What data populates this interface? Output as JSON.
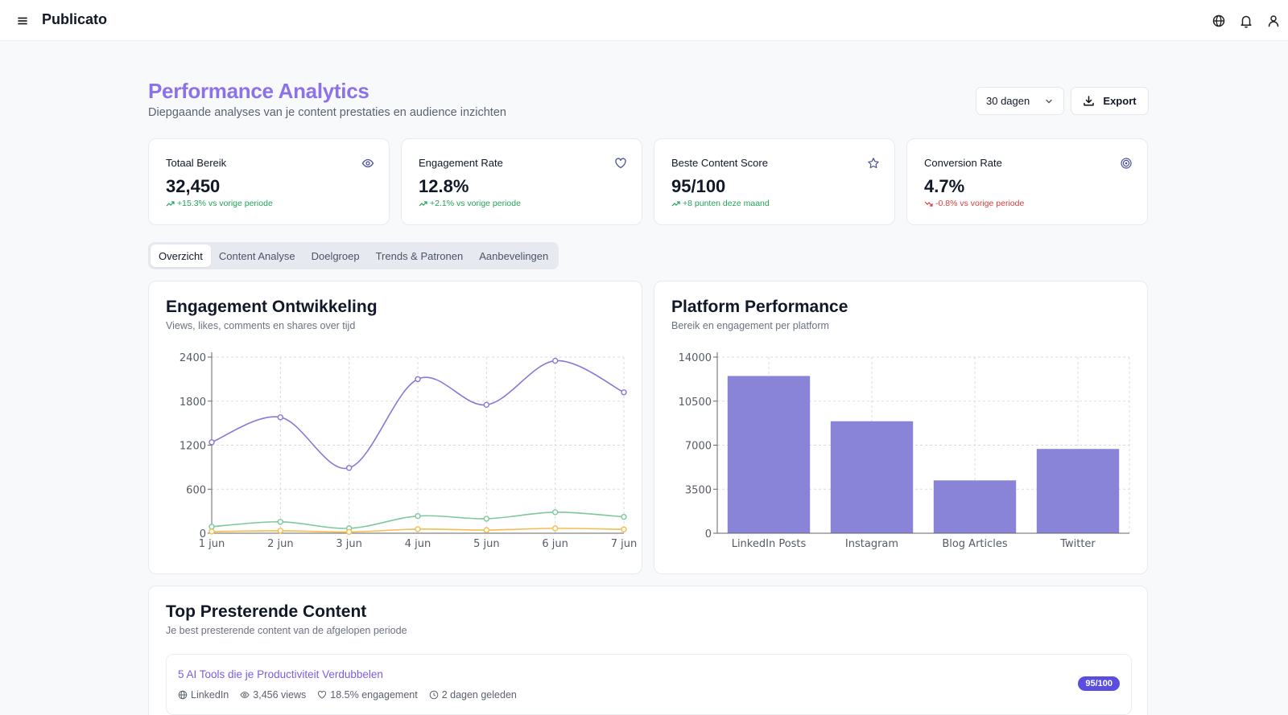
{
  "app": {
    "name": "Publicato"
  },
  "header": {
    "title": "Performance Analytics",
    "subtitle": "Diepgaande analyses van je content prestaties en audience inzichten"
  },
  "controls": {
    "range_value": "30 dagen",
    "export_label": "Export"
  },
  "kpis": [
    {
      "label": "Totaal Bereik",
      "value": "32,450",
      "delta": "+15.3% vs vorige periode",
      "trend": "up",
      "icon": "eye-icon"
    },
    {
      "label": "Engagement Rate",
      "value": "12.8%",
      "delta": "+2.1% vs vorige periode",
      "trend": "up",
      "icon": "heart-icon"
    },
    {
      "label": "Beste Content Score",
      "value": "95/100",
      "delta": "+8 punten deze maand",
      "trend": "up",
      "icon": "star-icon"
    },
    {
      "label": "Conversion Rate",
      "value": "4.7%",
      "delta": "-0.8% vs vorige periode",
      "trend": "down",
      "icon": "target-icon"
    }
  ],
  "tabs": [
    {
      "label": "Overzicht",
      "active": true
    },
    {
      "label": "Content Analyse",
      "active": false
    },
    {
      "label": "Doelgroep",
      "active": false
    },
    {
      "label": "Trends & Patronen",
      "active": false
    },
    {
      "label": "Aanbevelingen",
      "active": false
    }
  ],
  "colors": {
    "accent": "#8b72e8",
    "views": "#8878d6",
    "likes": "#7dc99a",
    "comments": "#f5bd4f",
    "bar": "#8a84d8",
    "up": "#23a35a",
    "down": "#e03a3a"
  },
  "engagement_card": {
    "title": "Engagement Ontwikkeling",
    "subtitle": "Views, likes, comments en shares over tijd"
  },
  "platform_card": {
    "title": "Platform Performance",
    "subtitle": "Bereik en engagement per platform"
  },
  "top_content": {
    "title": "Top Presterende Content",
    "subtitle": "Je best presterende content van de afgelopen periode",
    "items": [
      {
        "title": "5 AI Tools die je Productiviteit Verdubbelen",
        "platform": "LinkedIn",
        "views": "3,456 views",
        "engagement": "18.5% engagement",
        "time": "2 dagen geleden",
        "score": "95/100"
      }
    ]
  },
  "chart_data": [
    {
      "type": "line",
      "x": [
        "1 jun",
        "2 jun",
        "3 jun",
        "4 jun",
        "5 jun",
        "6 jun",
        "7 jun"
      ],
      "series": [
        {
          "values": [
            1240,
            1580,
            890,
            2100,
            1750,
            2350,
            1920
          ]
        },
        {
          "values": [
            89,
            156,
            67,
            234,
            198,
            287,
            223
          ]
        },
        {
          "values": [
            23,
            34,
            18,
            56,
            43,
            67,
            52
          ]
        }
      ],
      "ylim": [
        0,
        2400
      ],
      "yticks": [
        0,
        600,
        1200,
        1800,
        2400
      ],
      "grid": true
    },
    {
      "type": "bar",
      "categories": [
        "LinkedIn Posts",
        "Instagram",
        "Blog Articles",
        "Twitter"
      ],
      "values": [
        12500,
        8900,
        4200,
        6700
      ],
      "ylim": [
        0,
        14000
      ],
      "yticks": [
        0,
        3500,
        7000,
        10500,
        14000
      ],
      "grid": true
    }
  ]
}
